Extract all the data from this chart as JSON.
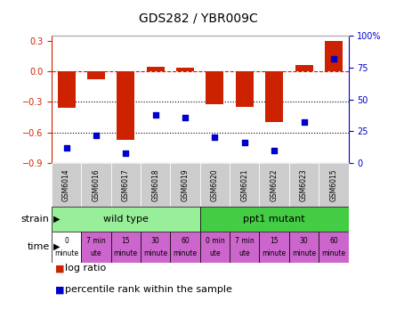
{
  "title": "GDS282 / YBR009C",
  "samples": [
    "GSM6014",
    "GSM6016",
    "GSM6017",
    "GSM6018",
    "GSM6019",
    "GSM6020",
    "GSM6021",
    "GSM6022",
    "GSM6023",
    "GSM6015"
  ],
  "log_ratio": [
    -0.36,
    -0.08,
    -0.67,
    0.05,
    0.04,
    -0.32,
    -0.35,
    -0.5,
    0.06,
    0.3
  ],
  "percentile": [
    12,
    22,
    8,
    38,
    36,
    20,
    16,
    10,
    32,
    82
  ],
  "ylim_left": [
    -0.9,
    0.35
  ],
  "ylim_right": [
    0,
    100
  ],
  "yticks_left": [
    -0.9,
    -0.6,
    -0.3,
    0.0,
    0.3
  ],
  "yticks_right": [
    0,
    25,
    50,
    75,
    100
  ],
  "ytick_labels_right": [
    "0",
    "25",
    "50",
    "75",
    "100%"
  ],
  "hline_y": 0.0,
  "dotted_lines": [
    -0.3,
    -0.6
  ],
  "bar_color": "#cc2200",
  "scatter_color": "#0000cc",
  "bar_width": 0.6,
  "strain_colors": [
    "#99ee99",
    "#44cc44"
  ],
  "time_colors": [
    "#ffffff",
    "#cc66cc",
    "#cc66cc",
    "#cc66cc",
    "#cc66cc",
    "#cc66cc",
    "#cc66cc",
    "#cc66cc",
    "#cc66cc",
    "#cc66cc"
  ],
  "gsm_bg": "#cccccc",
  "xlabel_strain": "strain",
  "xlabel_time": "time",
  "legend_bar": "log ratio",
  "legend_scatter": "percentile rank within the sample",
  "bg_color": "#ffffff"
}
